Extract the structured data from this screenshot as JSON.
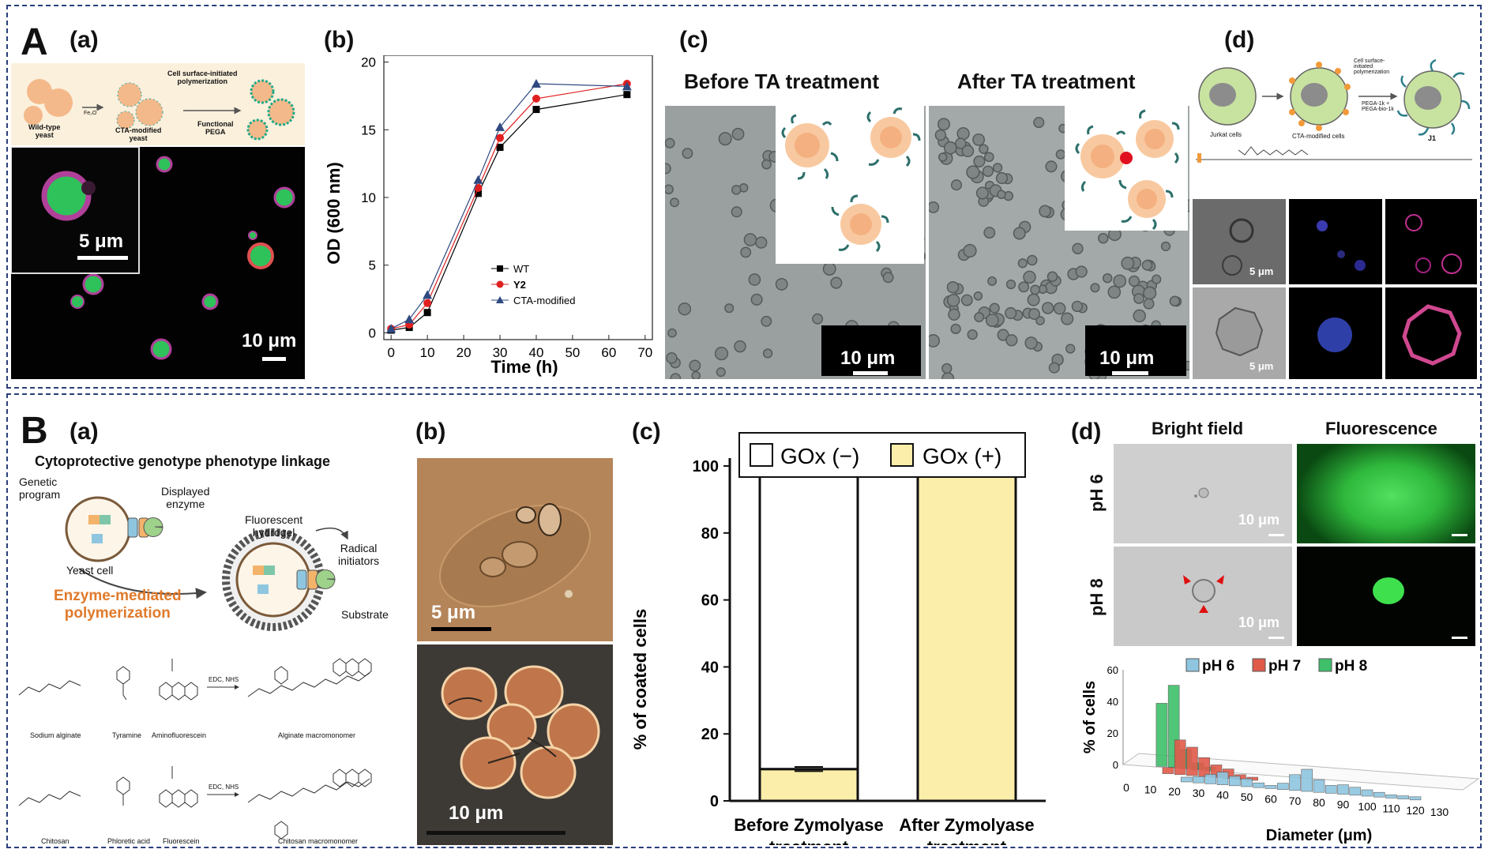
{
  "panelA": {
    "letter": "A",
    "a": {
      "label": "(a)",
      "schematic": {
        "wild_type": "Wild-type\nyeast",
        "arrow_reagent": "Fe₂O",
        "cta_modified": "CTA-modified\nyeast",
        "polymerization": "Cell surface-initiated\npolymerization",
        "functional": "Functional\nPEGA"
      },
      "scale_inset": "5 μm",
      "scale_main": "10 μm"
    },
    "b": {
      "label": "(b)",
      "legend": [
        "WT",
        "Y2",
        "CTA-modified"
      ]
    },
    "c": {
      "label": "(c)",
      "before": "Before TA treatment",
      "after": "After TA treatment",
      "scale_before": "10 μm",
      "scale_after": "10 μm"
    },
    "d": {
      "label": "(d)",
      "jurkat": "Jurkat cells",
      "cta": "CTA-modified cells",
      "polymerization": "Cell surface-\ninitiated\npolymerization",
      "pega": "PEGA-1k +\nPEGA-bio-1k",
      "j1": "J1",
      "scale1": "5 μm",
      "scale2": "5 μm"
    }
  },
  "panelB": {
    "letter": "B",
    "a": {
      "label": "(a)",
      "title": "Cytoprotective genotype phenotype linkage",
      "genetic": "Genetic\nprogram",
      "displayed": "Displayed\nenzyme",
      "yeast": "Yeast cell",
      "fluorescent": "Fluorescent\nhydrogel",
      "radical": "Radical\ninitiators",
      "enzyme_mediated": "Enzyme-mediated\npolymerization",
      "substrate": "Substrate",
      "chem1": [
        "Sodium alginate",
        "Tyramine",
        "Aminofluorescein",
        "Alginate macromonomer"
      ],
      "chem2": [
        "Chitosan",
        "Phloretic acid",
        "Fluorescein",
        "Chitosan macromonomer"
      ],
      "reagent": "EDC, NHS"
    },
    "b": {
      "label": "(b)",
      "scale_top": "5 μm",
      "scale_bottom": "10 μm"
    },
    "c": {
      "label": "(c)",
      "legend_minus": "GOx (−)",
      "legend_plus": "GOx (+)"
    },
    "d": {
      "label": "(d)",
      "col1": "Bright field",
      "col2": "Fluorescence",
      "row1": "pH 6",
      "row2": "pH 8",
      "scale1": "10 μm",
      "scale2": "10 μm"
    }
  },
  "colors": {
    "frame": "#2a3f7a",
    "yeast_green": "#3ac25a",
    "orange": "#e07a2b",
    "bar_yellow": "#fbeeaa",
    "ph6": "#8ec6e0",
    "ph7": "#e05a4a",
    "ph8": "#3fbf6a"
  },
  "chart_data": [
    {
      "type": "line",
      "title": "",
      "xlabel": "Time (h)",
      "ylabel": "OD (600 nm)",
      "xlim": [
        -2,
        72
      ],
      "ylim": [
        -0.5,
        20.5
      ],
      "xticks": [
        0,
        10,
        20,
        30,
        40,
        50,
        60,
        70
      ],
      "yticks": [
        0,
        5,
        10,
        15,
        20
      ],
      "legend_position": "bottom-right",
      "series": [
        {
          "name": "WT",
          "marker": "square",
          "color": "#000000",
          "x": [
            0,
            5,
            10,
            24,
            30,
            40,
            65
          ],
          "y": [
            0.2,
            0.4,
            1.5,
            10.3,
            13.7,
            16.5,
            17.6
          ]
        },
        {
          "name": "Y2",
          "marker": "circle",
          "color": "#e02020",
          "x": [
            0,
            5,
            10,
            24,
            30,
            40,
            65
          ],
          "y": [
            0.3,
            0.6,
            2.2,
            10.7,
            14.4,
            17.3,
            18.4
          ]
        },
        {
          "name": "CTA-modified",
          "marker": "triangle",
          "color": "#2f4a80",
          "x": [
            0,
            5,
            10,
            24,
            30,
            40,
            65
          ],
          "y": [
            0.3,
            1.0,
            2.8,
            11.3,
            15.2,
            18.4,
            18.2
          ]
        }
      ]
    },
    {
      "type": "bar",
      "stacked": true,
      "title": "",
      "xlabel": "",
      "ylabel": "% of coated cells",
      "ylim": [
        0,
        100
      ],
      "yticks": [
        0,
        20,
        40,
        60,
        80,
        100
      ],
      "categories": [
        "Before Zymolyase\ntreatment",
        "After Zymolyase\ntreatment"
      ],
      "series": [
        {
          "name": "GOx (+)",
          "values": [
            9.5,
            100
          ],
          "color": "#fbeeaa"
        },
        {
          "name": "GOx (−)",
          "values": [
            90.5,
            0
          ],
          "color": "#ffffff"
        }
      ],
      "legend_position": "top"
    },
    {
      "type": "bar",
      "mode": "3d-histogram",
      "title": "",
      "xlabel": "Diameter (μm)",
      "ylabel": "% of cells",
      "ylim": [
        0,
        60
      ],
      "yticks": [
        0,
        20,
        40,
        60
      ],
      "xticks": [
        0,
        10,
        20,
        30,
        40,
        50,
        60,
        70,
        80,
        90,
        100,
        110,
        120,
        130
      ],
      "series": [
        {
          "name": "pH 6",
          "color": "#8ec6e0",
          "x": [
            25,
            30,
            35,
            40,
            45,
            50,
            55,
            60,
            65,
            70,
            75,
            80,
            85,
            90,
            95,
            100,
            105,
            110,
            115,
            120
          ],
          "y": [
            3,
            4,
            6,
            8,
            6,
            5,
            3,
            2,
            4,
            10,
            14,
            8,
            5,
            6,
            5,
            4,
            3,
            2,
            2,
            2
          ]
        },
        {
          "name": "pH 7",
          "color": "#e05a4a",
          "x": [
            15,
            20,
            25,
            30,
            35,
            40,
            45,
            50
          ],
          "y": [
            4,
            22,
            18,
            12,
            8,
            6,
            3,
            2
          ]
        },
        {
          "name": "pH 8",
          "color": "#3fbf6a",
          "x": [
            10,
            15,
            20,
            25,
            30
          ],
          "y": [
            40,
            52,
            12,
            4,
            2
          ]
        }
      ],
      "legend_position": "top-right"
    }
  ]
}
